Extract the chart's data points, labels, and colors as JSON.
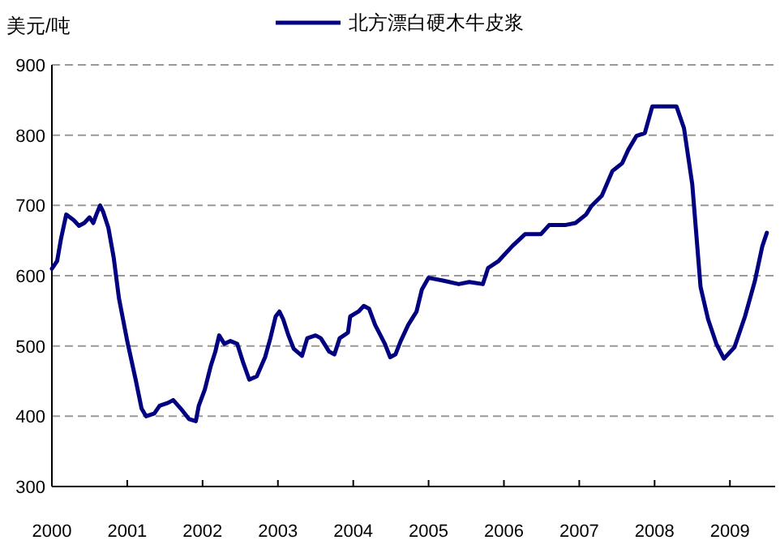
{
  "chart_data": {
    "type": "line",
    "ylabel": "美元/吨",
    "legend": "top",
    "x": [
      2000.0,
      2000.07,
      2000.12,
      2000.19,
      2000.29,
      2000.36,
      2000.43,
      2000.5,
      2000.55,
      2000.59,
      2000.64,
      2000.68,
      2000.75,
      2000.82,
      2000.89,
      2001.0,
      2001.11,
      2001.19,
      2001.25,
      2001.36,
      2001.43,
      2001.54,
      2001.61,
      2001.71,
      2001.82,
      2001.91,
      2001.95,
      2002.03,
      2002.11,
      2002.17,
      2002.22,
      2002.29,
      2002.37,
      2002.46,
      2002.54,
      2002.62,
      2002.72,
      2002.83,
      2002.9,
      2002.97,
      2003.02,
      2003.07,
      2003.14,
      2003.21,
      2003.32,
      2003.39,
      2003.5,
      2003.57,
      2003.68,
      2003.75,
      2003.82,
      2003.93,
      2003.96,
      2004.07,
      2004.14,
      2004.21,
      2004.29,
      2004.42,
      2004.49,
      2004.56,
      2004.63,
      2004.73,
      2004.84,
      2004.91,
      2005.0,
      2005.19,
      2005.4,
      2005.54,
      2005.72,
      2005.79,
      2005.93,
      2006.11,
      2006.28,
      2006.49,
      2006.6,
      2006.81,
      2006.95,
      2007.09,
      2007.16,
      2007.3,
      2007.44,
      2007.57,
      2007.65,
      2007.76,
      2007.87,
      2007.97,
      2008.29,
      2008.39,
      2008.5,
      2008.61,
      2008.71,
      2008.82,
      2008.92,
      2009.06,
      2009.2,
      2009.33,
      2009.43,
      2009.49
    ],
    "series": [
      {
        "name": "北方漂白硬木牛皮浆",
        "color": "#000080",
        "values": [
          610,
          621,
          652,
          687,
          679,
          671,
          675,
          683,
          675,
          687,
          700,
          691,
          668,
          626,
          568,
          507,
          453,
          411,
          400,
          404,
          415,
          419,
          423,
          411,
          396,
          393,
          415,
          438,
          472,
          492,
          515,
          503,
          507,
          503,
          476,
          452,
          457,
          484,
          511,
          542,
          549,
          538,
          515,
          496,
          486,
          511,
          515,
          511,
          492,
          488,
          511,
          519,
          542,
          549,
          557,
          553,
          530,
          503,
          484,
          488,
          507,
          530,
          549,
          580,
          597,
          593,
          588,
          591,
          588,
          611,
          621,
          642,
          659,
          659,
          672,
          672,
          675,
          687,
          699,
          714,
          749,
          760,
          779,
          799,
          803,
          841,
          841,
          810,
          730,
          584,
          538,
          503,
          482,
          498,
          542,
          592,
          642,
          661
        ]
      }
    ],
    "xlim": [
      2000,
      2009.6
    ],
    "xticks": [
      2000,
      2001,
      2002,
      2003,
      2004,
      2005,
      2006,
      2007,
      2008,
      2009
    ],
    "ylim": [
      300,
      900
    ],
    "yticks": [
      300,
      400,
      500,
      600,
      700,
      800,
      900
    ],
    "grid": "y",
    "line_style": "solid",
    "marker": "none"
  }
}
